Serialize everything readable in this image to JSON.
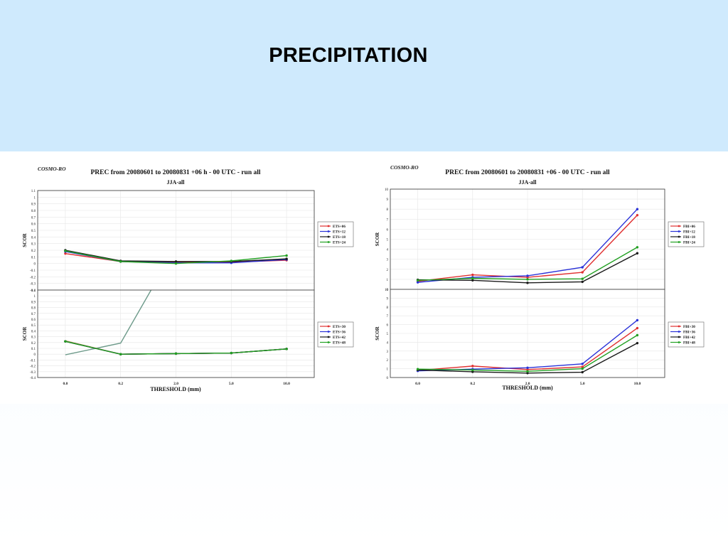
{
  "slide": {
    "title": "PRECIPITATION"
  },
  "figures": [
    {
      "model_label": "COSMO-RO",
      "title": "PREC from 20080601 to 20080831 +06 h - 00 UTC - run all",
      "subtitle": "JJA-all",
      "xlabel": "THRESHOLD (mm)"
    },
    {
      "model_label": "COSMO-RO",
      "title": "PREC from 20080601 to 20080831 +06 - 00 UTC - run all",
      "subtitle": "JJA-all",
      "xlabel": "THRESHOLD (mm)"
    }
  ],
  "chart_data": [
    {
      "type": "line",
      "categories": [
        "0.0",
        "0.2",
        "2.0",
        "5.0",
        "10.0"
      ],
      "ylabel": "SCOR",
      "ylim": [
        -0.4,
        1.1
      ],
      "yticks": [
        "1.1",
        "1",
        "0.9",
        "0.8",
        "0.7",
        "0.6",
        "0.5",
        "0.4",
        "0.3",
        "0.2",
        "0.1",
        "0",
        "-0.1",
        "-0.2",
        "-0.3",
        "-0.4"
      ],
      "grid": true,
      "legend_position": "right",
      "series": [
        {
          "name": "ETS+06",
          "color": "#e03030",
          "values": [
            0.15,
            0.03,
            0.02,
            0.02,
            0.05
          ]
        },
        {
          "name": "ETS+12",
          "color": "#2a32d8",
          "values": [
            0.18,
            0.03,
            0.01,
            0.01,
            0.06
          ]
        },
        {
          "name": "ETS+18",
          "color": "#1a1a1a",
          "values": [
            0.2,
            0.04,
            0.03,
            0.03,
            0.07
          ]
        },
        {
          "name": "ETS+24",
          "color": "#22a022",
          "values": [
            0.19,
            0.03,
            0.0,
            0.04,
            0.12
          ]
        }
      ]
    },
    {
      "type": "line",
      "categories": [
        "0.0",
        "0.2",
        "2.0",
        "5.0",
        "10.0"
      ],
      "ylabel": "SCOR",
      "ylim": [
        -0.4,
        1.1
      ],
      "yticks": [
        "1.1",
        "1",
        "0.9",
        "0.8",
        "0.7",
        "0.6",
        "0.5",
        "0.4",
        "0.3",
        "0.2",
        "0.1",
        "0",
        "-0.1",
        "-0.2",
        "-0.3",
        "-0.4"
      ],
      "grid": true,
      "legend_position": "right",
      "series": [
        {
          "name": "ETS+30",
          "color": "#e03030",
          "values": [
            0.22,
            0.0,
            0.01,
            0.02,
            0.09
          ]
        },
        {
          "name": "ETS+36",
          "color": "#2a32d8",
          "values": [
            0.22,
            0.0,
            0.01,
            0.02,
            0.09
          ]
        },
        {
          "name": "ETS+42",
          "color": "#1a1a1a",
          "values": [
            0.22,
            0.0,
            0.01,
            0.02,
            0.09
          ]
        },
        {
          "name": "ETS+48",
          "color": "#22a022",
          "values": [
            0.22,
            0.0,
            0.01,
            0.02,
            0.09
          ]
        }
      ],
      "extra_lines": [
        {
          "color": "#6d9a8a",
          "width": 1.4,
          "points": [
            [
              0,
              -0.01
            ],
            [
              1,
              0.19
            ],
            [
              1.55,
              1.1
            ]
          ]
        },
        {
          "color": "#caa070",
          "width": 1.4,
          "points": [
            [
              0,
              0.23
            ],
            [
              1,
              0.0
            ],
            [
              2,
              0.01
            ],
            [
              3,
              0.02
            ],
            [
              4,
              0.09
            ]
          ]
        }
      ]
    },
    {
      "type": "line",
      "categories": [
        "0.0",
        "0.2",
        "2.0",
        "5.0",
        "10.0"
      ],
      "ylabel": "SCOR",
      "ylim": [
        0,
        10
      ],
      "yticks": [
        "10",
        "9",
        "8",
        "7",
        "6",
        "5",
        "4",
        "3",
        "2",
        "1",
        "0"
      ],
      "grid": true,
      "legend_position": "right",
      "series": [
        {
          "name": "FBI+06",
          "color": "#e03030",
          "values": [
            0.8,
            1.45,
            1.2,
            1.7,
            7.4
          ]
        },
        {
          "name": "FBI+12",
          "color": "#2a32d8",
          "values": [
            0.7,
            1.2,
            1.35,
            2.2,
            8.0
          ]
        },
        {
          "name": "FBI+18",
          "color": "#1a1a1a",
          "values": [
            0.95,
            0.9,
            0.65,
            0.75,
            3.6
          ]
        },
        {
          "name": "FBI+24",
          "color": "#22a022",
          "values": [
            0.9,
            1.1,
            1.0,
            1.05,
            4.2
          ]
        }
      ]
    },
    {
      "type": "line",
      "categories": [
        "0.0",
        "0.2",
        "2.0",
        "5.0",
        "10.0"
      ],
      "ylabel": "SCOR",
      "ylim": [
        0,
        10
      ],
      "yticks": [
        "10",
        "9",
        "8",
        "7",
        "6",
        "5",
        "4",
        "3",
        "2",
        "1",
        "0"
      ],
      "grid": true,
      "legend_position": "right",
      "series": [
        {
          "name": "FBI+30",
          "color": "#e03030",
          "values": [
            0.8,
            1.3,
            0.9,
            1.2,
            5.6
          ]
        },
        {
          "name": "FBI+36",
          "color": "#2a32d8",
          "values": [
            0.75,
            0.95,
            1.1,
            1.55,
            6.5
          ]
        },
        {
          "name": "FBI+42",
          "color": "#1a1a1a",
          "values": [
            0.85,
            0.65,
            0.5,
            0.6,
            3.9
          ]
        },
        {
          "name": "FBI+48",
          "color": "#22a022",
          "values": [
            0.95,
            0.85,
            0.7,
            1.0,
            4.8
          ]
        }
      ]
    }
  ]
}
